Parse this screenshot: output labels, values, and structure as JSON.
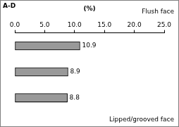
{
  "chart_data": {
    "type": "bar",
    "title": "A-D",
    "xlabel": "(%)",
    "annotations": [
      "Flush face",
      "Lipped/grooved face"
    ],
    "orientation": "horizontal",
    "categories": [
      null,
      null,
      null
    ],
    "values": [
      10.9,
      8.9,
      8.8
    ],
    "color": "#999999",
    "xlim": [
      0,
      25
    ],
    "xticks": [
      {
        "value": 0,
        "label": "0.0"
      },
      {
        "value": 5,
        "label": "5.0"
      },
      {
        "value": 10,
        "label": "10.0"
      },
      {
        "value": 15,
        "label": "15.0"
      },
      {
        "value": 20,
        "label": "20.0"
      },
      {
        "value": 25,
        "label": "25.0"
      }
    ],
    "grid": false,
    "data_labels": true
  }
}
